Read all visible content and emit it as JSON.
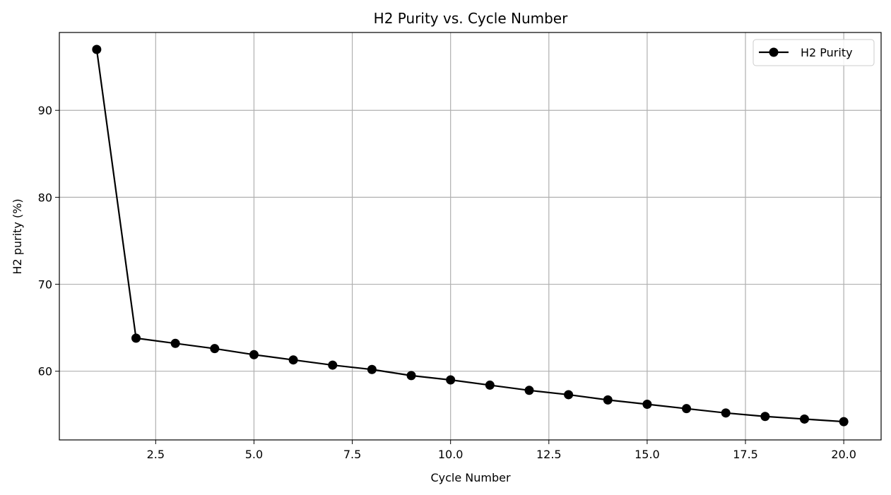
{
  "chart_data": {
    "type": "line",
    "title": "H2 Purity vs. Cycle Number",
    "xlabel": "Cycle Number",
    "ylabel": "H2 purity (%)",
    "xlim": [
      0.05,
      20.95
    ],
    "ylim": [
      52.1,
      98.95
    ],
    "x_ticks": [
      2.5,
      5.0,
      7.5,
      10.0,
      12.5,
      15.0,
      17.5,
      20.0
    ],
    "x_tick_labels": [
      "2.5",
      "5.0",
      "7.5",
      "10.0",
      "12.5",
      "15.0",
      "17.5",
      "20.0"
    ],
    "y_ticks": [
      60,
      70,
      80,
      90
    ],
    "y_tick_labels": [
      "60",
      "70",
      "80",
      "90"
    ],
    "grid": true,
    "legend_position": "top-right",
    "series": [
      {
        "name": "H2 Purity",
        "color": "#000000",
        "marker": "circle",
        "x": [
          1,
          2,
          3,
          4,
          5,
          6,
          7,
          8,
          9,
          10,
          11,
          12,
          13,
          14,
          15,
          16,
          17,
          18,
          19,
          20
        ],
        "y": [
          97.0,
          63.8,
          63.2,
          62.6,
          61.9,
          61.3,
          60.7,
          60.2,
          59.5,
          59.0,
          58.4,
          57.8,
          57.3,
          56.7,
          56.2,
          55.7,
          55.2,
          54.8,
          54.5,
          54.2
        ]
      }
    ]
  }
}
